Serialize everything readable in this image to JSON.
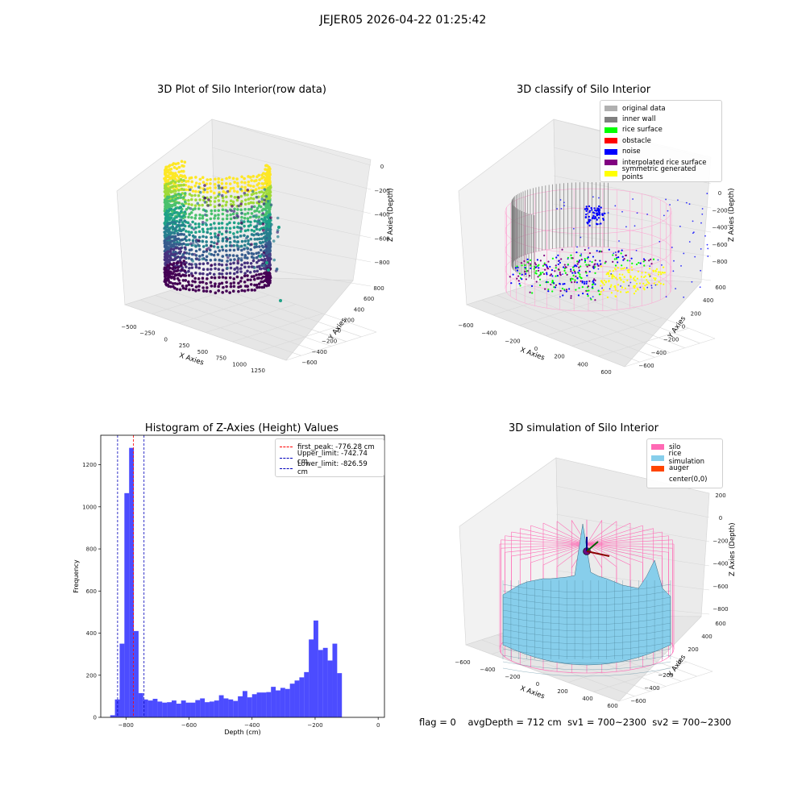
{
  "suptitle": "JEJER05 2026-04-22 01:25:42",
  "status": {
    "flag": "flag = 0",
    "avg_depth": "avgDepth = 712 cm",
    "sv1": "sv1 = 700~2300",
    "sv2": "sv2 = 700~2300"
  },
  "chart_data": [
    {
      "type": "scatter",
      "title": "3D Plot of Silo Interior(row data)",
      "xlabel": "X Axies",
      "ylabel": "Y Axies",
      "zlabel": "Z Axies (Depth)",
      "x_ticks": [
        "−500",
        "−250",
        "0",
        "250",
        "500",
        "750",
        "1000",
        "1250"
      ],
      "y_ticks": [
        "−600",
        "−400",
        "−200",
        "0",
        "200",
        "400",
        "600",
        "800"
      ],
      "z_ticks": [
        "−800",
        "−600",
        "−400",
        "−200",
        "0"
      ],
      "colormap": "viridis"
    },
    {
      "type": "scatter",
      "title": "3D classify of Silo Interior",
      "xlabel": "X Axies",
      "ylabel": "Y Axies",
      "zlabel": "Z Axies (Depth)",
      "x_ticks": [
        "−600",
        "−400",
        "−200",
        "0",
        "200",
        "400",
        "600"
      ],
      "y_ticks": [
        "−600",
        "−400",
        "−200",
        "0",
        "200",
        "400",
        "600"
      ],
      "z_ticks": [
        "−800",
        "−600",
        "−400",
        "−200",
        "0"
      ],
      "legend": [
        {
          "label": "original data",
          "color": "#b0b0b0"
        },
        {
          "label": "inner wall",
          "color": "#808080"
        },
        {
          "label": "rice surface",
          "color": "#00ff00"
        },
        {
          "label": "obstacle",
          "color": "#ff0000"
        },
        {
          "label": "noise",
          "color": "#0000ff"
        },
        {
          "label": "interpolated rice surface",
          "color": "#800080"
        },
        {
          "label": "symmetric generated points",
          "color": "#ffff00"
        }
      ]
    },
    {
      "type": "bar",
      "title": "Histogram of Z-Axies (Height) Values",
      "xlabel": "Depth (cm)",
      "ylabel": "Frequency",
      "xlim": [
        -880,
        20
      ],
      "ylim": [
        0,
        1340
      ],
      "x_ticks": [
        -800,
        -600,
        -400,
        -200,
        0
      ],
      "y_ticks": [
        0,
        200,
        400,
        600,
        800,
        1000,
        1200
      ],
      "bin_start": -850,
      "bin_width": 15,
      "values": [
        10,
        85,
        350,
        1065,
        1280,
        410,
        115,
        85,
        80,
        88,
        75,
        70,
        72,
        80,
        65,
        80,
        70,
        70,
        82,
        90,
        72,
        75,
        80,
        105,
        90,
        85,
        78,
        100,
        125,
        95,
        110,
        118,
        118,
        120,
        145,
        128,
        140,
        135,
        160,
        175,
        190,
        215,
        370,
        460,
        320,
        330,
        270,
        350,
        210
      ],
      "bar_color": "#0000ff",
      "vlines": [
        {
          "label": "first_peak: -776.28 cm",
          "x": -776.28,
          "color": "#ff0000"
        },
        {
          "label": "Upper_limit: -742.74 cm",
          "x": -742.74,
          "color": "#0000bb"
        },
        {
          "label": "Lower_limit: -826.59 cm",
          "x": -826.59,
          "color": "#0000bb"
        }
      ]
    },
    {
      "type": "area",
      "title": "3D simulation of Silo Interior",
      "xlabel": "X Axies",
      "ylabel": "Y Axies",
      "zlabel": "Z Axies (Depth)",
      "x_ticks": [
        "−600",
        "−400",
        "−200",
        "0",
        "200",
        "400",
        "600"
      ],
      "y_ticks": [
        "−600",
        "−400",
        "−200",
        "0",
        "200",
        "400",
        "600"
      ],
      "z_ticks": [
        "−800",
        "−600",
        "−400",
        "−200",
        "0",
        "200"
      ],
      "legend": [
        {
          "label": "silo",
          "color": "#ff69b4"
        },
        {
          "label": "rice simulation",
          "color": "#87ceeb"
        },
        {
          "label": "auger",
          "color": "#ff4500"
        },
        {
          "label": "center(0,0)",
          "color": ""
        }
      ]
    }
  ]
}
